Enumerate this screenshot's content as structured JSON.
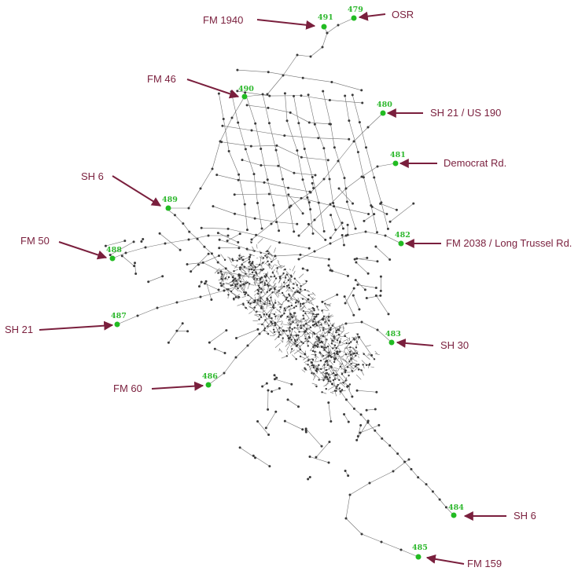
{
  "colors": {
    "label": "#7a1f3d",
    "arrow": "#7a1f3d",
    "external_node": "#22bb22",
    "node_id": "#2eb82e",
    "network_line": "#707070",
    "network_node": "#3a3a3a"
  },
  "external_stations": [
    {
      "id": "491",
      "road": "FM 1940"
    },
    {
      "id": "479",
      "road": "OSR"
    },
    {
      "id": "490",
      "road": "FM 46"
    },
    {
      "id": "480",
      "road": "SH 21 / US 190"
    },
    {
      "id": "481",
      "road": "Democrat Rd."
    },
    {
      "id": "489",
      "road": "SH 6"
    },
    {
      "id": "482",
      "road": "FM 2038 / Long Trussel Rd."
    },
    {
      "id": "488",
      "road": "FM 50"
    },
    {
      "id": "487",
      "road": "SH 21"
    },
    {
      "id": "483",
      "road": "SH 30"
    },
    {
      "id": "486",
      "road": "FM 60"
    },
    {
      "id": "484",
      "road": "SH 6"
    },
    {
      "id": "485",
      "road": "FM 159"
    }
  ]
}
